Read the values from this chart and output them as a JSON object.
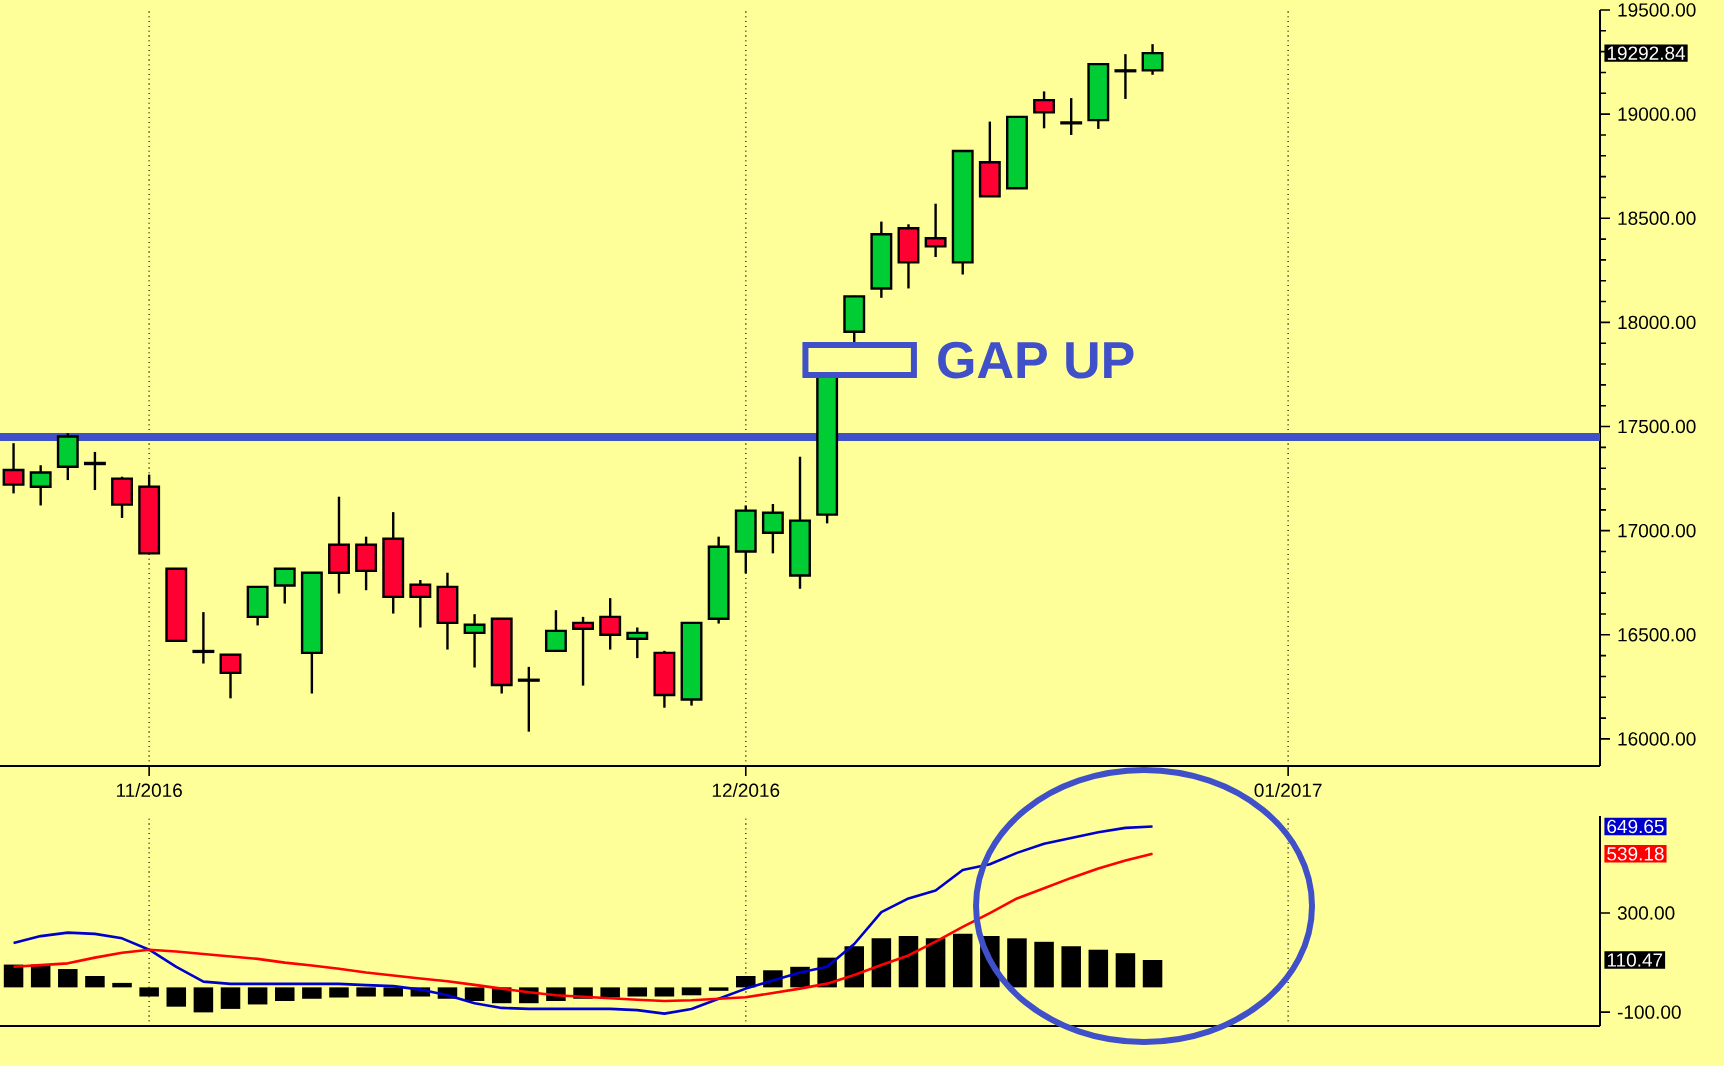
{
  "chart_data": [
    {
      "type": "candlestick",
      "categories": [
        null,
        null,
        null,
        null,
        null,
        "11/2016",
        null,
        null,
        null,
        null,
        null,
        null,
        null,
        null,
        null,
        null,
        null,
        null,
        null,
        null,
        null,
        null,
        null,
        null,
        null,
        null,
        null,
        "12/2016",
        null,
        null,
        null,
        null,
        null,
        null,
        null,
        null,
        null,
        null,
        null,
        null,
        null,
        null,
        null,
        null,
        null,
        null,
        null,
        "01/2017",
        null,
        null,
        null,
        null,
        null,
        null,
        null,
        null,
        null,
        null,
        null
      ],
      "ohlc": [
        [
          17291,
          17420,
          17179,
          17221
        ],
        [
          17211,
          17314,
          17121,
          17279
        ],
        [
          17307,
          17468,
          17243,
          17452
        ],
        [
          17325,
          17378,
          17195,
          17320
        ],
        [
          17250,
          17259,
          17061,
          17125
        ],
        [
          17211,
          17269,
          16888,
          16891
        ],
        [
          16817,
          16820,
          16468,
          16471
        ],
        [
          16422,
          16609,
          16362,
          16418
        ],
        [
          16404,
          16407,
          16195,
          16317
        ],
        [
          16586,
          16733,
          16545,
          16730
        ],
        [
          16737,
          16820,
          16650,
          16817
        ],
        [
          16413,
          16801,
          16218,
          16798
        ],
        [
          16932,
          17163,
          16698,
          16798
        ],
        [
          16932,
          16971,
          16714,
          16807
        ],
        [
          16961,
          17089,
          16602,
          16682
        ],
        [
          16740,
          16763,
          16535,
          16682
        ],
        [
          16730,
          16798,
          16429,
          16557
        ],
        [
          16509,
          16599,
          16343,
          16548
        ],
        [
          16577,
          16580,
          16218,
          16259
        ],
        [
          16284,
          16346,
          16035,
          16280
        ],
        [
          16423,
          16618,
          16420,
          16519
        ],
        [
          16557,
          16586,
          16256,
          16529
        ],
        [
          16586,
          16676,
          16429,
          16500
        ],
        [
          16481,
          16535,
          16388,
          16509
        ],
        [
          16413,
          16423,
          16150,
          16211
        ],
        [
          16189,
          16560,
          16160,
          16557
        ],
        [
          16577,
          16971,
          16554,
          16923
        ],
        [
          16900,
          17121,
          16795,
          17096
        ],
        [
          16990,
          17128,
          16891,
          17086
        ],
        [
          16785,
          17355,
          16721,
          17048
        ],
        [
          17077,
          17747,
          17035,
          17747
        ],
        [
          17955,
          18128,
          17891,
          18125
        ],
        [
          18163,
          18484,
          18118,
          18423
        ],
        [
          18452,
          18471,
          18163,
          18288
        ],
        [
          18404,
          18570,
          18314,
          18365
        ],
        [
          18288,
          18826,
          18230,
          18823
        ],
        [
          18769,
          18964,
          18603,
          18606
        ],
        [
          18644,
          18990,
          18641,
          18987
        ],
        [
          19067,
          19109,
          18932,
          19009
        ],
        [
          18960,
          19077,
          18900,
          18956
        ],
        [
          18971,
          19243,
          18929,
          19240
        ],
        [
          19210,
          19288,
          19073,
          19206
        ],
        [
          19211,
          19336,
          19189,
          19292.84
        ],
        null,
        null,
        null,
        null,
        null,
        null,
        null,
        null,
        null,
        null,
        null,
        null,
        null,
        null,
        null,
        null
      ],
      "colors": [
        "#ff0033",
        "#00cc33",
        "#00cc33",
        "#ff0033",
        "#ff0033",
        "#ff0033",
        "#ff0033",
        "#ff0033",
        "#ff0033",
        "#00cc33",
        "#00cc33",
        "#00cc33",
        "#ff0033",
        "#ff0033",
        "#ff0033",
        "#ff0033",
        "#ff0033",
        "#00cc33",
        "#ff0033",
        "#ff0033",
        "#00cc33",
        "#ff0033",
        "#ff0033",
        "#00cc33",
        "#ff0033",
        "#00cc33",
        "#00cc33",
        "#00cc33",
        "#00cc33",
        "#00cc33",
        "#00cc33",
        "#00cc33",
        "#00cc33",
        "#ff0033",
        "#ff0033",
        "#00cc33",
        "#ff0033",
        "#00cc33",
        "#ff0033",
        "#ff0033",
        "#00cc33",
        "#ff0033",
        "#00cc33",
        null,
        null,
        null,
        null,
        null,
        null,
        null,
        null,
        null,
        null,
        null,
        null,
        null,
        null,
        null,
        null
      ],
      "ylim": [
        15870,
        19500
      ],
      "yticks": [
        {
          "value": 16000,
          "label": "16000.00"
        },
        {
          "value": 16500,
          "label": "16500.00"
        },
        {
          "value": 17000,
          "label": "17000.00"
        },
        {
          "value": 17500,
          "label": "17500.00"
        },
        {
          "value": 18000,
          "label": "18000.00"
        },
        {
          "value": 18500,
          "label": "18500.00"
        },
        {
          "value": 19000,
          "label": "19000.00"
        },
        {
          "value": 19500,
          "label": "19500.00"
        }
      ],
      "grid": "x",
      "ref_lines": [
        {
          "axis": "y",
          "value": 17450,
          "color": "#4050c8"
        }
      ],
      "annotations": [
        "GAP UP",
        "19292.84"
      ]
    },
    {
      "type": "bar",
      "categories": [
        null,
        null,
        null,
        null,
        null,
        null,
        null,
        null,
        null,
        null,
        null,
        null,
        null,
        null,
        null,
        null,
        null,
        null,
        null,
        null,
        null,
        null,
        null,
        null,
        null,
        null,
        null,
        null,
        null,
        null,
        null,
        null,
        null,
        null,
        null,
        null,
        null,
        null,
        null,
        null,
        null,
        null,
        null,
        null,
        null,
        null,
        null,
        null,
        null,
        null,
        null,
        null,
        null,
        null,
        null,
        null,
        null,
        null,
        null
      ],
      "series": [
        {
          "type": "bar",
          "color": "#000000",
          "values": [
            92,
            92,
            74,
            46,
            18,
            -37,
            -78,
            -101,
            -87,
            -69,
            -55,
            -46,
            -41,
            -37,
            -37,
            -37,
            -46,
            -55,
            -64,
            -64,
            -55,
            -46,
            -41,
            -37,
            -37,
            -32,
            -14,
            46,
            69,
            83,
            120,
            166,
            198,
            207,
            198,
            216,
            207,
            198,
            184,
            166,
            152,
            138,
            110.47,
            null,
            null,
            null,
            null,
            null,
            null,
            null,
            null,
            null,
            null,
            null,
            null,
            null,
            null,
            null,
            null
          ]
        },
        {
          "type": "line",
          "color": "#0000cc",
          "values": [
            179,
            207,
            221,
            216,
            198,
            152,
            83,
            23,
            14,
            14,
            14,
            14,
            14,
            9,
            5,
            -9,
            -32,
            -64,
            -83,
            -87,
            -87,
            -87,
            -87,
            -92,
            -106,
            -87,
            -46,
            -5,
            28,
            60,
            83,
            175,
            304,
            359,
            391,
            474,
            497,
            543,
            580,
            603,
            626,
            644,
            649.65,
            null,
            null,
            null,
            null,
            null,
            null,
            null,
            null,
            null,
            null,
            null,
            null,
            null,
            null,
            null,
            null
          ]
        },
        {
          "type": "line",
          "color": "#ff0000",
          "values": [
            83,
            90,
            97,
            120,
            140,
            152,
            145,
            135,
            125,
            115,
            100,
            88,
            75,
            60,
            48,
            36,
            25,
            10,
            -5,
            -20,
            -32,
            -38,
            -44,
            -50,
            -55,
            -52,
            -46,
            -40,
            -23,
            -5,
            15,
            50,
            90,
            129,
            185,
            244,
            300,
            359,
            400,
            442,
            480,
            512,
            539.18,
            null,
            null,
            null,
            null,
            null,
            null,
            null,
            null,
            null,
            null,
            null,
            null,
            null,
            null,
            null,
            null
          ]
        }
      ],
      "ylim": [
        -156,
        692
      ],
      "yticks": [
        {
          "value": -100,
          "label": "-100.00"
        },
        {
          "value": 300,
          "label": "300.00"
        }
      ],
      "grid": "x",
      "tick_labels": "y",
      "annotations": [
        "110.47",
        "649.65",
        "539.18"
      ]
    }
  ]
}
